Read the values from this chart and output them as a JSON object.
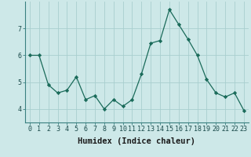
{
  "x": [
    0,
    1,
    2,
    3,
    4,
    5,
    6,
    7,
    8,
    9,
    10,
    11,
    12,
    13,
    14,
    15,
    16,
    17,
    18,
    19,
    20,
    21,
    22,
    23
  ],
  "y": [
    6.0,
    6.0,
    4.9,
    4.6,
    4.7,
    5.2,
    4.35,
    4.5,
    4.0,
    4.35,
    4.1,
    4.35,
    5.3,
    6.45,
    6.55,
    7.7,
    7.15,
    6.6,
    6.0,
    5.1,
    4.6,
    4.45,
    4.6,
    3.95
  ],
  "xlabel": "Humidex (Indice chaleur)",
  "xlim": [
    -0.5,
    23.5
  ],
  "ylim": [
    3.5,
    8.0
  ],
  "yticks": [
    4,
    5,
    6,
    7
  ],
  "xtick_labels": [
    "0",
    "1",
    "2",
    "3",
    "4",
    "5",
    "6",
    "7",
    "8",
    "9",
    "10",
    "11",
    "12",
    "13",
    "14",
    "15",
    "16",
    "17",
    "18",
    "19",
    "20",
    "21",
    "22",
    "23"
  ],
  "line_color": "#1a6b5a",
  "marker_color": "#1a6b5a",
  "bg_color": "#cde8e8",
  "grid_color": "#a8cece",
  "xlabel_fontsize": 7.5,
  "tick_fontsize": 6.0
}
